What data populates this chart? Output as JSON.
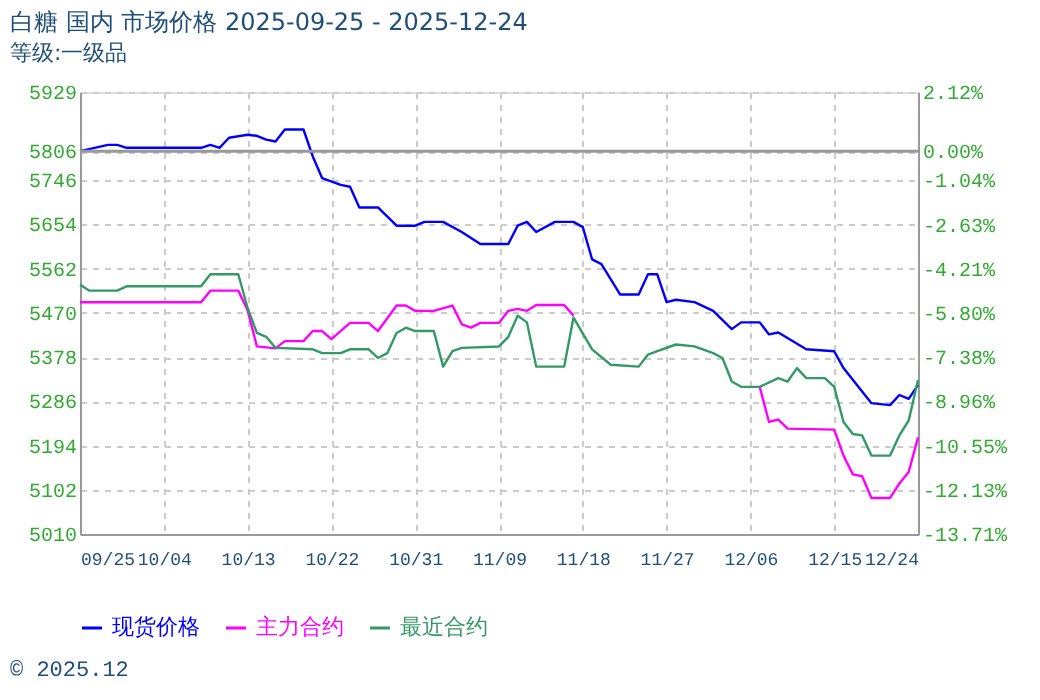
{
  "chart_data": {
    "type": "line",
    "title": "白糖 国内 市场价格 2025-09-25 - 2025-12-24",
    "subtitle": "等级:一级品",
    "series": [
      {
        "name": "现货价格",
        "color": "#0000ff",
        "x": [
          "2025-09-25",
          "2025-09-28",
          "2025-09-29",
          "2025-09-30",
          "2025-10-08",
          "2025-10-09",
          "2025-10-10",
          "2025-10-11",
          "2025-10-13",
          "2025-10-14",
          "2025-10-15",
          "2025-10-16",
          "2025-10-17",
          "2025-10-19",
          "2025-10-20",
          "2025-10-21",
          "2025-10-23",
          "2025-10-24",
          "2025-10-25",
          "2025-10-27",
          "2025-10-29",
          "2025-10-31",
          "2025-11-01",
          "2025-11-03",
          "2025-11-05",
          "2025-11-07",
          "2025-11-10",
          "2025-11-11",
          "2025-11-12",
          "2025-11-13",
          "2025-11-15",
          "2025-11-17",
          "2025-11-18",
          "2025-11-19",
          "2025-11-20",
          "2025-11-22",
          "2025-11-24",
          "2025-11-25",
          "2025-11-26",
          "2025-11-27",
          "2025-11-28",
          "2025-11-30",
          "2025-12-02",
          "2025-12-04",
          "2025-12-05",
          "2025-12-07",
          "2025-12-08",
          "2025-12-09",
          "2025-12-12",
          "2025-12-15",
          "2025-12-16",
          "2025-12-19",
          "2025-12-21",
          "2025-12-22",
          "2025-12-23",
          "2025-12-24"
        ],
        "values": [
          5806,
          5819,
          5819,
          5813,
          5813,
          5819,
          5813,
          5834,
          5840,
          5838,
          5830,
          5826,
          5851,
          5851,
          5795,
          5750,
          5736,
          5732,
          5689,
          5689,
          5651,
          5651,
          5659,
          5659,
          5638,
          5613,
          5613,
          5651,
          5659,
          5638,
          5659,
          5659,
          5648,
          5581,
          5571,
          5508,
          5508,
          5550,
          5550,
          5492,
          5497,
          5492,
          5474,
          5436,
          5450,
          5450,
          5425,
          5429,
          5394,
          5390,
          5355,
          5282,
          5278,
          5299,
          5291,
          5320
        ]
      },
      {
        "name": "主力合约",
        "color": "#ff00ff",
        "x": [
          "2025-09-25",
          "2025-10-08",
          "2025-10-09",
          "2025-10-12",
          "2025-10-13",
          "2025-10-14",
          "2025-10-16",
          "2025-10-17",
          "2025-10-19",
          "2025-10-20",
          "2025-10-21",
          "2025-10-22",
          "2025-10-24",
          "2025-10-26",
          "2025-10-27",
          "2025-10-29",
          "2025-10-30",
          "2025-10-31",
          "2025-11-02",
          "2025-11-04",
          "2025-11-05",
          "2025-11-06",
          "2025-11-07",
          "2025-11-09",
          "2025-11-10",
          "2025-11-11",
          "2025-11-12",
          "2025-11-13",
          "2025-11-16",
          "2025-11-17",
          "2025-11-25",
          "2025-12-07",
          "2025-12-08",
          "2025-12-09",
          "2025-12-10",
          "2025-12-15",
          "2025-12-16",
          "2025-12-17",
          "2025-12-18",
          "2025-12-19",
          "2025-12-21",
          "2025-12-22",
          "2025-12-23",
          "2025-12-24"
        ],
        "values": [
          5492,
          5492,
          5516,
          5516,
          5475,
          5400,
          5396,
          5411,
          5411,
          5432,
          5432,
          5415,
          5449,
          5449,
          5432,
          5485,
          5485,
          5474,
          5474,
          5485,
          5446,
          5439,
          5449,
          5449,
          5474,
          5478,
          5474,
          5486,
          5486,
          5464,
          null,
          5316,
          5243,
          5248,
          5229,
          5227,
          5173,
          5134,
          5130,
          5085,
          5085,
          5115,
          5139,
          5211
        ]
      },
      {
        "name": "最近合约",
        "color": "#339966",
        "x": [
          "2025-09-25",
          "2025-09-26",
          "2025-09-29",
          "2025-09-30",
          "2025-10-08",
          "2025-10-09",
          "2025-10-12",
          "2025-10-13",
          "2025-10-14",
          "2025-10-15",
          "2025-10-16",
          "2025-10-20",
          "2025-10-21",
          "2025-10-23",
          "2025-10-24",
          "2025-10-26",
          "2025-10-27",
          "2025-10-28",
          "2025-10-29",
          "2025-10-30",
          "2025-10-31",
          "2025-11-02",
          "2025-11-03",
          "2025-11-04",
          "2025-11-05",
          "2025-11-09",
          "2025-11-10",
          "2025-11-11",
          "2025-11-12",
          "2025-11-13",
          "2025-11-16",
          "2025-11-17",
          "2025-11-19",
          "2025-11-21",
          "2025-11-24",
          "2025-11-25",
          "2025-11-26",
          "2025-11-28",
          "2025-11-30",
          "2025-12-02",
          "2025-12-03",
          "2025-12-04",
          "2025-12-05",
          "2025-12-07",
          "2025-12-09",
          "2025-12-10",
          "2025-12-11",
          "2025-12-12",
          "2025-12-14",
          "2025-12-15",
          "2025-12-16",
          "2025-12-17",
          "2025-12-18",
          "2025-12-19",
          "2025-12-21",
          "2025-12-22",
          "2025-12-23",
          "2025-12-24"
        ],
        "values": [
          5529,
          5516,
          5516,
          5525,
          5525,
          5550,
          5550,
          5480,
          5428,
          5420,
          5397,
          5394,
          5386,
          5386,
          5394,
          5394,
          5376,
          5386,
          5428,
          5439,
          5432,
          5432,
          5358,
          5390,
          5397,
          5400,
          5420,
          5464,
          5450,
          5358,
          5358,
          5460,
          5394,
          5362,
          5358,
          5383,
          5390,
          5404,
          5400,
          5386,
          5376,
          5327,
          5316,
          5316,
          5334,
          5327,
          5355,
          5334,
          5334,
          5316,
          5243,
          5218,
          5215,
          5173,
          5173,
          5215,
          5246,
          5330
        ]
      }
    ],
    "xlim": [
      "2025-09-25",
      "2025-12-24"
    ],
    "xticks": [
      {
        "value": "2025-09-25",
        "label": "09/25"
      },
      {
        "value": "2025-10-04",
        "label": "10/04"
      },
      {
        "value": "2025-10-13",
        "label": "10/13"
      },
      {
        "value": "2025-10-22",
        "label": "10/22"
      },
      {
        "value": "2025-10-31",
        "label": "10/31"
      },
      {
        "value": "2025-11-09",
        "label": "11/09"
      },
      {
        "value": "2025-11-18",
        "label": "11/18"
      },
      {
        "value": "2025-11-27",
        "label": "11/27"
      },
      {
        "value": "2025-12-06",
        "label": "12/06"
      },
      {
        "value": "2025-12-15",
        "label": "12/15"
      },
      {
        "value": "2025-12-24",
        "label": "12/24"
      }
    ],
    "ylim": [
      5010,
      5929
    ],
    "yticks": [
      5010,
      5102,
      5194,
      5286,
      5378,
      5470,
      5562,
      5654,
      5746,
      5806,
      5929
    ],
    "y2lim": [
      -13.71,
      2.12
    ],
    "y2ticks": [
      {
        "value": -13.71,
        "label": "-13.71%"
      },
      {
        "value": -12.13,
        "label": "-12.13%"
      },
      {
        "value": -10.55,
        "label": "-10.55%"
      },
      {
        "value": -8.96,
        "label": "-8.96%"
      },
      {
        "value": -7.38,
        "label": "-7.38%"
      },
      {
        "value": -5.8,
        "label": "-5.80%"
      },
      {
        "value": -4.21,
        "label": "-4.21%"
      },
      {
        "value": -2.63,
        "label": "-2.63%"
      },
      {
        "value": -1.04,
        "label": "-1.04%"
      },
      {
        "value": 0,
        "label": "0.00%"
      },
      {
        "value": 2.12,
        "label": "2.12%"
      }
    ],
    "ref_lines": [
      {
        "axis": "y",
        "value": 5806,
        "color": "#999999"
      }
    ],
    "grid": true,
    "legend": "bottom",
    "marker": "none",
    "line_style": "solid",
    "annotations": [
      "© 2025.12"
    ]
  }
}
